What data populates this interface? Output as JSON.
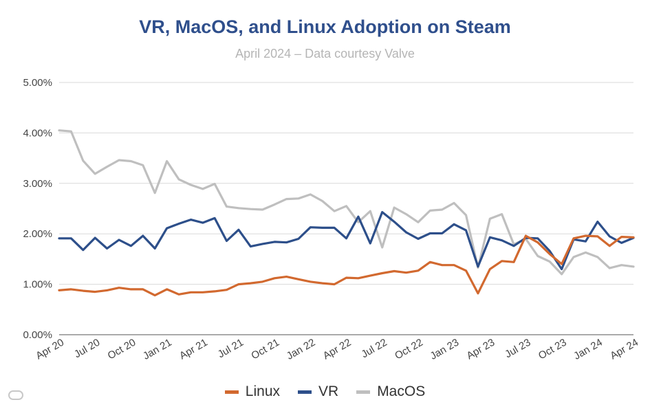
{
  "chart_data": {
    "type": "line",
    "title": "VR, MacOS, and Linux Adoption on Steam",
    "subtitle": "April 2024 – Data courtesy Valve",
    "y_ticks": [
      "0.00%",
      "1.00%",
      "2.00%",
      "3.00%",
      "4.00%",
      "5.00%"
    ],
    "ylim": [
      0,
      5
    ],
    "x_ticks": [
      "Apr 20",
      "Jul 20",
      "Oct 20",
      "Jan 21",
      "Apr 21",
      "Jul 21",
      "Oct 21",
      "Jan 22",
      "Apr 22",
      "Jul 22",
      "Oct 22",
      "Jan 23",
      "Apr 23",
      "Jul 23",
      "Oct 23",
      "Jan 24",
      "Apr 24"
    ],
    "x_tick_months": [
      0,
      3,
      6,
      9,
      12,
      15,
      18,
      21,
      24,
      27,
      30,
      33,
      36,
      39,
      42,
      45,
      48
    ],
    "xlim": [
      0,
      48
    ],
    "grid": true,
    "legend_position": "bottom",
    "series": [
      {
        "name": "Linux",
        "color": "#d2692f",
        "values": [
          0.88,
          0.9,
          0.87,
          0.85,
          0.88,
          0.93,
          0.9,
          0.9,
          0.78,
          0.9,
          0.8,
          0.84,
          0.84,
          0.86,
          0.89,
          1.0,
          1.02,
          1.05,
          1.12,
          1.15,
          1.1,
          1.05,
          1.02,
          1.0,
          1.13,
          1.12,
          1.17,
          1.22,
          1.26,
          1.23,
          1.27,
          1.44,
          1.38,
          1.38,
          1.27,
          0.82,
          1.3,
          1.46,
          1.44,
          1.96,
          1.83,
          1.6,
          1.4,
          1.91,
          1.96,
          1.95,
          1.76,
          1.94,
          1.93
        ]
      },
      {
        "name": "VR",
        "color": "#2d4f8a",
        "values": [
          1.91,
          1.91,
          1.68,
          1.92,
          1.71,
          1.88,
          1.76,
          1.96,
          1.71,
          2.11,
          2.2,
          2.28,
          2.22,
          2.31,
          1.86,
          2.08,
          1.75,
          1.8,
          1.84,
          1.83,
          1.9,
          2.13,
          2.12,
          2.12,
          1.91,
          2.34,
          1.81,
          2.43,
          2.24,
          2.03,
          1.9,
          2.01,
          2.01,
          2.19,
          2.07,
          1.35,
          1.93,
          1.87,
          1.76,
          1.92,
          1.91,
          1.66,
          1.3,
          1.89,
          1.85,
          2.24,
          1.95,
          1.82,
          1.92
        ]
      },
      {
        "name": "MacOS",
        "color": "#bfbfbf",
        "values": [
          4.05,
          4.03,
          3.45,
          3.19,
          3.33,
          3.46,
          3.44,
          3.36,
          2.81,
          3.44,
          3.08,
          2.97,
          2.89,
          2.99,
          2.54,
          2.51,
          2.49,
          2.48,
          2.58,
          2.69,
          2.7,
          2.78,
          2.65,
          2.45,
          2.55,
          2.23,
          2.45,
          1.73,
          2.52,
          2.39,
          2.23,
          2.46,
          2.48,
          2.61,
          2.37,
          1.33,
          2.3,
          2.39,
          1.79,
          1.9,
          1.56,
          1.45,
          1.2,
          1.54,
          1.63,
          1.54,
          1.32,
          1.38,
          1.35
        ]
      }
    ]
  }
}
